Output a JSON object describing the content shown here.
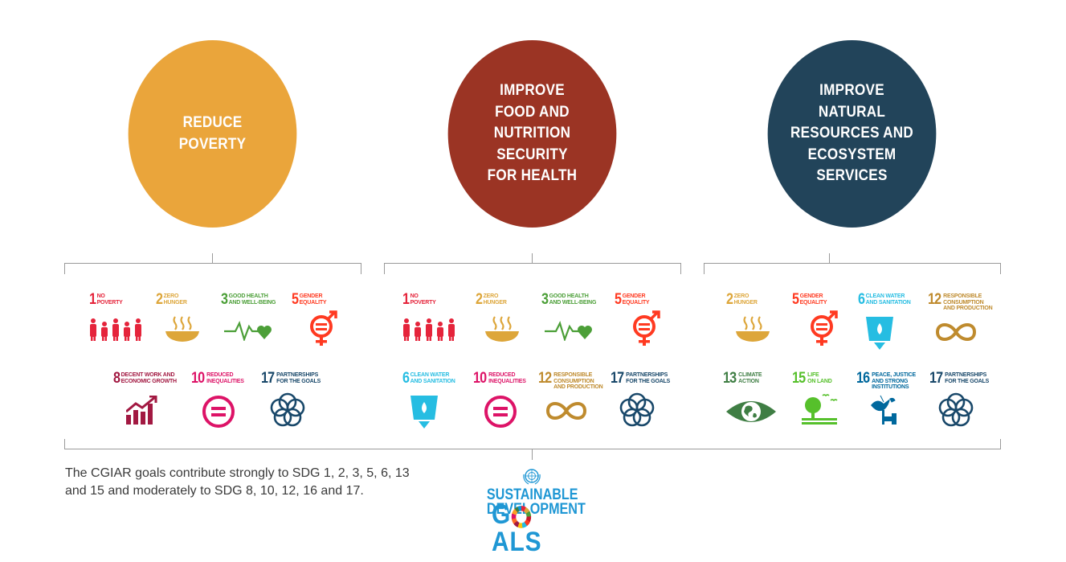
{
  "outcomes": [
    {
      "label": "REDUCE\nPOVERTY",
      "color": "#eaa53b"
    },
    {
      "label": "IMPROVE\nFOOD AND\nNUTRITION\nSECURITY\nFOR HEALTH",
      "color": "#9b3424"
    },
    {
      "label": "IMPROVE\nNATURAL\nRESOURCES AND\nECOSYSTEM\nSERVICES",
      "color": "#22445a"
    }
  ],
  "sdgs": {
    "1": {
      "num": "1",
      "title": "NO\nPOVERTY",
      "color": "#e5243b",
      "icon": "family-icon"
    },
    "2": {
      "num": "2",
      "title": "ZERO\nHUNGER",
      "color": "#dda63a",
      "icon": "bowl-icon"
    },
    "3": {
      "num": "3",
      "title": "GOOD HEALTH\nAND WELL-BEING",
      "color": "#4c9f38",
      "icon": "heartbeat-icon"
    },
    "5": {
      "num": "5",
      "title": "GENDER\nEQUALITY",
      "color": "#ff3a21",
      "icon": "gender-icon"
    },
    "6": {
      "num": "6",
      "title": "CLEAN WATER\nAND SANITATION",
      "color": "#26bde2",
      "icon": "water-glass-icon"
    },
    "8": {
      "num": "8",
      "title": "DECENT WORK AND\nECONOMIC GROWTH",
      "color": "#a21942",
      "icon": "growth-chart-icon"
    },
    "10": {
      "num": "10",
      "title": "REDUCED\nINEQUALITIES",
      "color": "#dd1367",
      "icon": "equals-circle-icon"
    },
    "12": {
      "num": "12",
      "title": "RESPONSIBLE\nCONSUMPTION\nAND PRODUCTION",
      "color": "#bf8b2e",
      "icon": "infinity-icon"
    },
    "13": {
      "num": "13",
      "title": "CLIMATE\nACTION",
      "color": "#3f7e44",
      "icon": "eye-globe-icon"
    },
    "15": {
      "num": "15",
      "title": "LIFE\nON LAND",
      "color": "#56c02b",
      "icon": "tree-icon"
    },
    "16": {
      "num": "16",
      "title": "PEACE, JUSTICE\nAND STRONG\nINSTITUTIONS",
      "color": "#00689d",
      "icon": "dove-gavel-icon"
    },
    "17": {
      "num": "17",
      "title": "PARTNERSHIPS\nFOR THE GOALS",
      "color": "#19486a",
      "icon": "rings-icon"
    }
  },
  "caption": "The CGIAR goals contribute strongly to SDG 1, 2, 3, 5, 6, 13\nand 15 and moderately to SDG 8, 10, 12, 16 and 17.",
  "sdg_logo": {
    "line1": "SUSTAINABLE",
    "line2": "DEVELOPMENT",
    "line3": "GOALS"
  }
}
